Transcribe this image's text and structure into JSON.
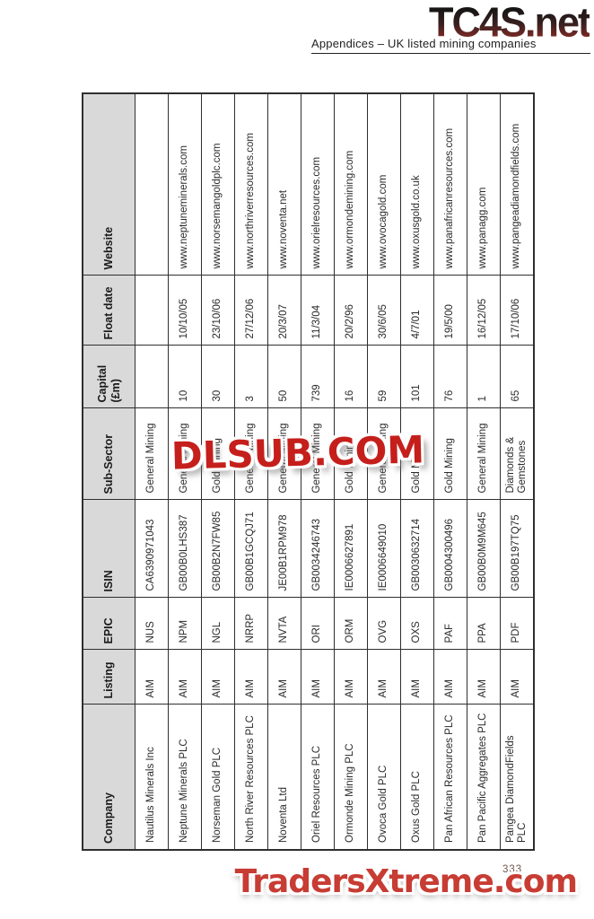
{
  "header": {
    "logo": "TC4S.net",
    "subtitle": "Appendices – UK listed mining companies"
  },
  "watermark": {
    "text": "DLSUB.COM"
  },
  "footer": {
    "page_number": "333",
    "brand": "TradersXtreme.com"
  },
  "colors": {
    "logo_gradient_top": "#151515",
    "logo_gradient_bottom": "#7e2a24",
    "watermark_red": "#c51f1c",
    "brand_red": "#c73c33",
    "table_header_bg": "#d9d9d9",
    "table_border": "#2f2f2f"
  },
  "table": {
    "orientation": "rotated-90-ccw",
    "columns": [
      "Company",
      "Listing",
      "EPIC",
      "ISIN",
      "Sub-Sector",
      "Capital (£m)",
      "Float date",
      "Website"
    ],
    "keys": [
      "company",
      "listing",
      "epic",
      "isin",
      "sub_sector",
      "capital",
      "float_date",
      "website"
    ],
    "rows": [
      {
        "company": "Nautilus Minerals Inc",
        "listing": "AIM",
        "epic": "NUS",
        "isin": "CA6390971043",
        "sub_sector": "General Mining",
        "capital": "",
        "float_date": "",
        "website": ""
      },
      {
        "company": "Neptune Minerals PLC",
        "listing": "AIM",
        "epic": "NPM",
        "isin": "GB00B0LHS387",
        "sub_sector": "General Mining",
        "capital": "10",
        "float_date": "10/10/05",
        "website": "www.neptuneminerals.com"
      },
      {
        "company": "Norseman Gold PLC",
        "listing": "AIM",
        "epic": "NGL",
        "isin": "GB00B2N7FW85",
        "sub_sector": "Gold Mining",
        "capital": "30",
        "float_date": "23/10/06",
        "website": "www.norsemangoldplc.com"
      },
      {
        "company": "North River Resources PLC",
        "listing": "AIM",
        "epic": "NRRP",
        "isin": "GB00B1GCQJ71",
        "sub_sector": "General Mining",
        "capital": "3",
        "float_date": "27/12/06",
        "website": "www.northriverresources.com"
      },
      {
        "company": "Noventa Ltd",
        "listing": "AIM",
        "epic": "NVTA",
        "isin": "JE00B1RPM978",
        "sub_sector": "General Mining",
        "capital": "50",
        "float_date": "20/3/07",
        "website": "www.noventa.net"
      },
      {
        "company": "Oriel Resources PLC",
        "listing": "AIM",
        "epic": "ORI",
        "isin": "GB0034246743",
        "sub_sector": "General Mining",
        "capital": "739",
        "float_date": "11/3/04",
        "website": "www.orielresources.com"
      },
      {
        "company": "Ormonde Mining PLC",
        "listing": "AIM",
        "epic": "ORM",
        "isin": "IE0006627891",
        "sub_sector": "Gold Mining",
        "capital": "16",
        "float_date": "20/2/96",
        "website": "www.ormondemining.com"
      },
      {
        "company": "Ovoca Gold PLC",
        "listing": "AIM",
        "epic": "OVG",
        "isin": "IE0006649010",
        "sub_sector": "General Mining",
        "capital": "59",
        "float_date": "30/6/05",
        "website": "www.ovocagold.com"
      },
      {
        "company": "Oxus Gold PLC",
        "listing": "AIM",
        "epic": "OXS",
        "isin": "GB0030632714",
        "sub_sector": "Gold Mining",
        "capital": "101",
        "float_date": "4/7/01",
        "website": "www.oxusgold.co.uk"
      },
      {
        "company": "Pan African Resources PLC",
        "listing": "AIM",
        "epic": "PAF",
        "isin": "GB0004300496",
        "sub_sector": "Gold Mining",
        "capital": "76",
        "float_date": "19/5/00",
        "website": "www.panafricanresources.com"
      },
      {
        "company": "Pan Pacific Aggregates PLC",
        "listing": "AIM",
        "epic": "PPA",
        "isin": "GB00B0M9M645",
        "sub_sector": "General Mining",
        "capital": "1",
        "float_date": "16/12/05",
        "website": "www.panagg.com"
      },
      {
        "company": "Pangea DiamondFields\nPLC",
        "listing": "AIM",
        "epic": "PDF",
        "isin": "GB00B197TQ75",
        "sub_sector": "Diamonds &\nGemstones",
        "capital": "65",
        "float_date": "17/10/06",
        "website": "www.pangeadiamondfields.com"
      }
    ]
  }
}
